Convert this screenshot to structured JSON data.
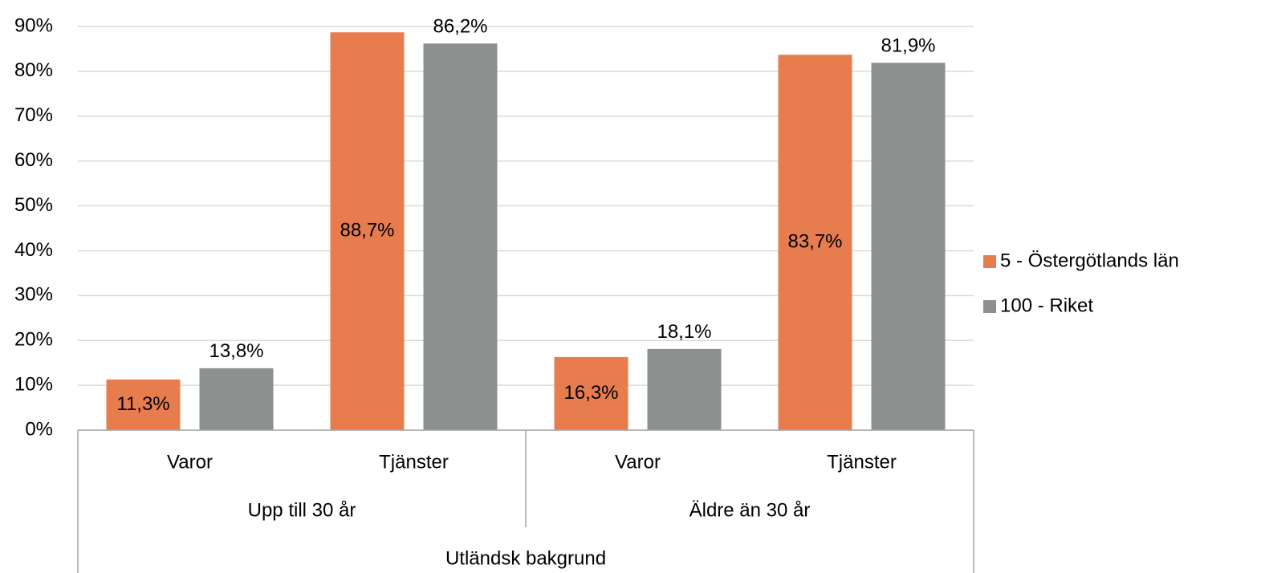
{
  "chart_data": {
    "type": "bar",
    "categories": [
      "Varor",
      "Tjänster",
      "Varor",
      "Tjänster"
    ],
    "groups": [
      "Upp till 30 år",
      "Äldre än 30 år"
    ],
    "supergroup": "Utländsk bakgrund",
    "series": [
      {
        "name": "5 - Östergötlands län",
        "color": "#e77d4e",
        "values": [
          11.3,
          88.7,
          16.3,
          83.7
        ],
        "value_labels": [
          "11,3%",
          "88,7%",
          "16,3%",
          "83,7%"
        ]
      },
      {
        "name": "100 - Riket",
        "color": "#8c918f",
        "values": [
          13.8,
          86.2,
          18.1,
          81.9
        ],
        "value_labels": [
          "13,8%",
          "86,2%",
          "18,1%",
          "81,9%"
        ]
      }
    ],
    "ylim": [
      0,
      90
    ],
    "yticks": [
      {
        "value": 0,
        "label": "0%"
      },
      {
        "value": 10,
        "label": "10%"
      },
      {
        "value": 20,
        "label": "20%"
      },
      {
        "value": 30,
        "label": "30%"
      },
      {
        "value": 40,
        "label": "40%"
      },
      {
        "value": 50,
        "label": "50%"
      },
      {
        "value": 60,
        "label": "60%"
      },
      {
        "value": 70,
        "label": "70%"
      },
      {
        "value": 80,
        "label": "80%"
      },
      {
        "value": 90,
        "label": "90%"
      }
    ],
    "grid": true,
    "legend": "right"
  }
}
